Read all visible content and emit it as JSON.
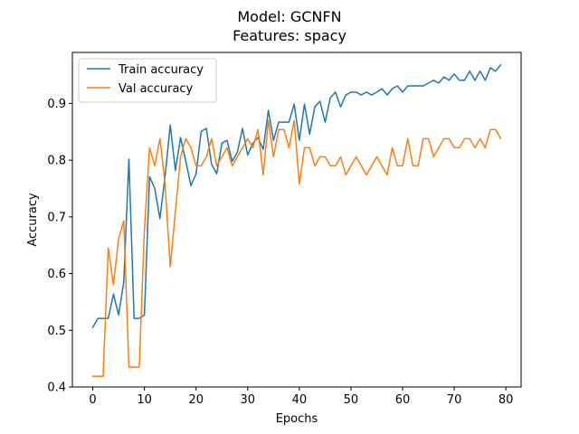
{
  "chart_data": {
    "type": "line",
    "title": "Model: GCNFN",
    "subtitle": "Features: spacy",
    "xlabel": "Epochs",
    "ylabel": "Accuracy",
    "xlim": [
      -3.95,
      82.95
    ],
    "ylim": [
      0.4,
      0.99
    ],
    "xticks": [
      0,
      10,
      20,
      30,
      40,
      50,
      60,
      70,
      80
    ],
    "yticks": [
      0.4,
      0.5,
      0.6,
      0.7,
      0.8,
      0.9
    ],
    "grid": false,
    "legend_position": "top-left",
    "series": [
      {
        "name": "Train accuracy",
        "color": "#1f77b4",
        "x": [
          0,
          1,
          2,
          3,
          4,
          5,
          6,
          7,
          8,
          9,
          10,
          11,
          12,
          13,
          14,
          15,
          16,
          17,
          18,
          19,
          20,
          21,
          22,
          23,
          24,
          25,
          26,
          27,
          28,
          29,
          30,
          31,
          32,
          33,
          34,
          35,
          36,
          37,
          38,
          39,
          40,
          41,
          42,
          43,
          44,
          45,
          46,
          47,
          48,
          49,
          50,
          51,
          52,
          53,
          54,
          55,
          56,
          57,
          58,
          59,
          60,
          61,
          62,
          63,
          64,
          65,
          66,
          67,
          68,
          69,
          70,
          71,
          72,
          73,
          74,
          75,
          76,
          77,
          78,
          79
        ],
        "values": [
          0.505,
          0.521,
          0.521,
          0.521,
          0.564,
          0.527,
          0.585,
          0.802,
          0.521,
          0.521,
          0.527,
          0.771,
          0.75,
          0.697,
          0.771,
          0.862,
          0.782,
          0.84,
          0.799,
          0.755,
          0.776,
          0.851,
          0.856,
          0.793,
          0.776,
          0.83,
          0.835,
          0.798,
          0.814,
          0.856,
          0.809,
          0.83,
          0.84,
          0.819,
          0.888,
          0.835,
          0.867,
          0.867,
          0.867,
          0.899,
          0.835,
          0.899,
          0.846,
          0.894,
          0.904,
          0.867,
          0.91,
          0.92,
          0.894,
          0.915,
          0.92,
          0.92,
          0.915,
          0.92,
          0.915,
          0.92,
          0.926,
          0.915,
          0.926,
          0.931,
          0.92,
          0.931,
          0.931,
          0.931,
          0.931,
          0.936,
          0.941,
          0.936,
          0.947,
          0.941,
          0.952,
          0.941,
          0.941,
          0.957,
          0.941,
          0.957,
          0.941,
          0.963,
          0.957,
          0.968
        ]
      },
      {
        "name": "Val accuracy",
        "color": "#ff7f0e",
        "x": [
          0,
          1,
          2,
          3,
          4,
          5,
          6,
          7,
          8,
          9,
          10,
          11,
          12,
          13,
          14,
          15,
          16,
          17,
          18,
          19,
          20,
          21,
          22,
          23,
          24,
          25,
          26,
          27,
          28,
          29,
          30,
          31,
          32,
          33,
          34,
          35,
          36,
          37,
          38,
          39,
          40,
          41,
          42,
          43,
          44,
          45,
          46,
          47,
          48,
          49,
          50,
          51,
          52,
          53,
          54,
          55,
          56,
          57,
          58,
          59,
          60,
          61,
          62,
          63,
          64,
          65,
          66,
          67,
          68,
          69,
          70,
          71,
          72,
          73,
          74,
          75,
          76,
          77,
          78,
          79
        ],
        "values": [
          0.419,
          0.419,
          0.419,
          0.645,
          0.58,
          0.661,
          0.693,
          0.435,
          0.435,
          0.435,
          0.677,
          0.822,
          0.79,
          0.838,
          0.758,
          0.612,
          0.709,
          0.806,
          0.838,
          0.822,
          0.79,
          0.79,
          0.806,
          0.838,
          0.79,
          0.806,
          0.822,
          0.79,
          0.806,
          0.822,
          0.838,
          0.822,
          0.854,
          0.774,
          0.87,
          0.806,
          0.854,
          0.854,
          0.822,
          0.87,
          0.758,
          0.822,
          0.822,
          0.79,
          0.806,
          0.806,
          0.79,
          0.79,
          0.806,
          0.774,
          0.79,
          0.806,
          0.79,
          0.774,
          0.79,
          0.806,
          0.79,
          0.774,
          0.822,
          0.79,
          0.79,
          0.838,
          0.79,
          0.79,
          0.838,
          0.838,
          0.806,
          0.822,
          0.838,
          0.838,
          0.822,
          0.822,
          0.838,
          0.838,
          0.822,
          0.838,
          0.822,
          0.854,
          0.854,
          0.838
        ]
      }
    ]
  }
}
